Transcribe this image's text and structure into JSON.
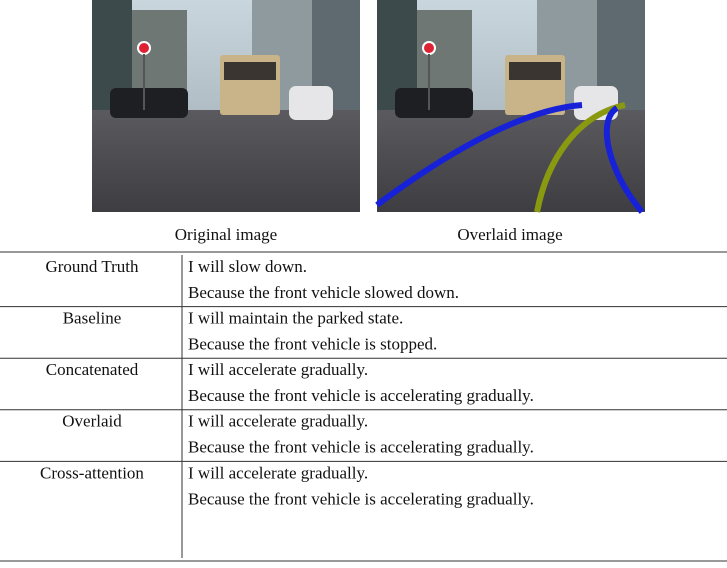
{
  "figure": {
    "captions": [
      "Original image",
      "Overlaid image"
    ]
  },
  "table": {
    "rows": [
      [
        "Ground Truth",
        "I will slow down.",
        "Because the front vehicle slowed down."
      ],
      [
        "Baseline",
        "I will maintain the parked state.",
        "Because the front vehicle is stopped."
      ],
      [
        "Concatenated",
        "I will accelerate gradually.",
        "Because the front vehicle is accelerating gradually."
      ],
      [
        "Overlaid",
        "I will accelerate gradually.",
        "Because the front vehicle is accelerating gradually."
      ],
      [
        "Cross-attention",
        "I will accelerate gradually.",
        "Because the front vehicle is accelerating gradually."
      ]
    ]
  }
}
